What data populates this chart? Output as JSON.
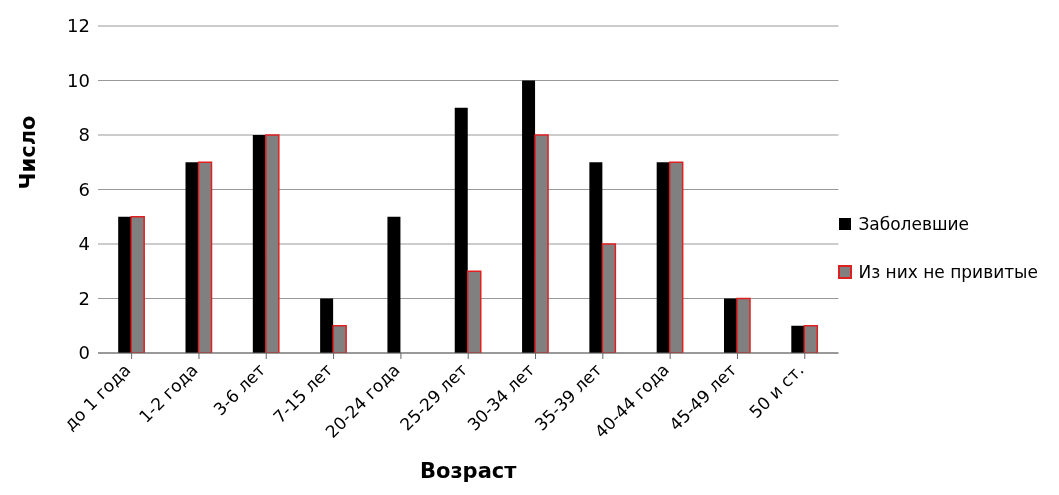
{
  "chart_data": {
    "type": "bar",
    "xlabel": "Возраст",
    "ylabel": "Число",
    "categories": [
      "до 1 года",
      "1-2 года",
      "3-6 лет",
      "7-15 лет",
      "20-24 года",
      "25-29 лет",
      "30-34 лет",
      "35-39 лет",
      "40-44 года",
      "45-49 лет",
      "50 и ст."
    ],
    "series": [
      {
        "name": "Заболевшие",
        "color": "#000000",
        "values": [
          5,
          7,
          8,
          2,
          5,
          9,
          10,
          7,
          7,
          2,
          1
        ]
      },
      {
        "name": "Из них не привитые",
        "color": "#808080",
        "values": [
          5,
          7,
          8,
          1,
          0,
          3,
          8,
          4,
          7,
          2,
          1
        ]
      }
    ],
    "ylim": [
      0,
      12
    ],
    "yticks": [
      0,
      2,
      4,
      6,
      8,
      10,
      12
    ],
    "grid": "y",
    "legend": "right"
  }
}
